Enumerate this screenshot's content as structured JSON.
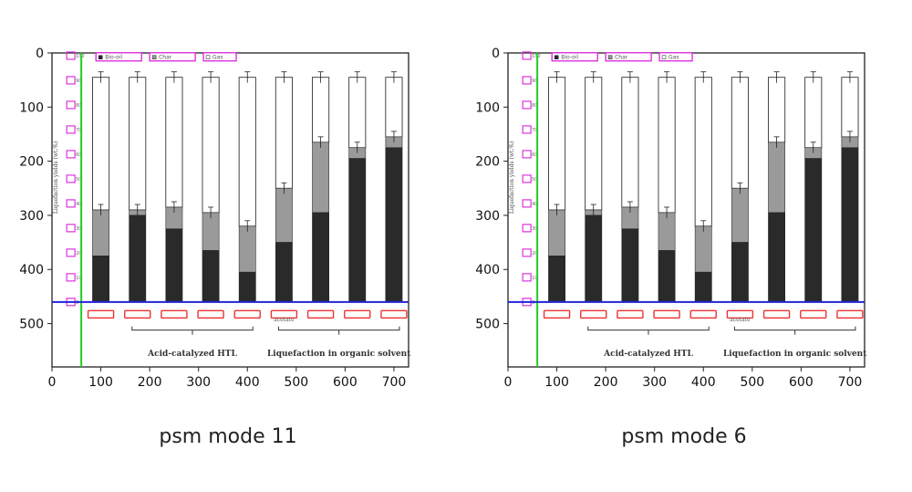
{
  "colors": {
    "green_line": "#22cc22",
    "blue_line": "#2222dd",
    "magenta_box": "#dd33dd",
    "red_box": "#ee3333",
    "dark_bar": "#2a2a2a",
    "gray_bar": "#9a9a9a"
  },
  "panels": [
    {
      "caption": "psm mode 11",
      "chart_data": {
        "type": "bar",
        "title": "",
        "x_ticks": [
          "0",
          "100",
          "200",
          "300",
          "400",
          "500",
          "600",
          "700"
        ],
        "y_ticks": [
          "0",
          "100",
          "200",
          "300",
          "400",
          "500"
        ],
        "xlim": [
          0,
          730
        ],
        "ylim": [
          580,
          0
        ],
        "inner_y_label": "Liquefaction yields (wt.%)",
        "inner_y_ticks": [
          "100",
          "90",
          "80",
          "70",
          "60",
          "50",
          "40",
          "30",
          "20",
          "10",
          "0"
        ],
        "legend": [
          "Bio-oil",
          "Char",
          "Gas"
        ],
        "group_labels": [
          "Acid-catalyzed HTL",
          "Liquefaction in organic solvent"
        ],
        "under_label": "acetate",
        "bars": [
          {
            "x": 100,
            "top": 45,
            "mid": 290,
            "dark": 375
          },
          {
            "x": 175,
            "top": 45,
            "mid": 290,
            "dark": 300
          },
          {
            "x": 250,
            "top": 45,
            "mid": 285,
            "dark": 325
          },
          {
            "x": 325,
            "top": 45,
            "mid": 295,
            "dark": 365
          },
          {
            "x": 400,
            "top": 45,
            "mid": 320,
            "dark": 405
          },
          {
            "x": 475,
            "top": 45,
            "mid": 250,
            "dark": 350
          },
          {
            "x": 550,
            "top": 45,
            "mid": 165,
            "dark": 295
          },
          {
            "x": 625,
            "top": 45,
            "mid": 175,
            "dark": 195
          },
          {
            "x": 700,
            "top": 45,
            "mid": 155,
            "dark": 175
          }
        ]
      }
    },
    {
      "caption": "psm mode 6",
      "chart_data": {
        "type": "bar",
        "title": "",
        "x_ticks": [
          "0",
          "100",
          "200",
          "300",
          "400",
          "500",
          "600",
          "700"
        ],
        "y_ticks": [
          "0",
          "100",
          "200",
          "300",
          "400",
          "500"
        ],
        "xlim": [
          0,
          730
        ],
        "ylim": [
          580,
          0
        ],
        "inner_y_label": "Liquefaction yields (wt.%)",
        "inner_y_ticks": [
          "100",
          "90",
          "80",
          "70",
          "60",
          "50",
          "40",
          "30",
          "20",
          "10",
          "0"
        ],
        "legend": [
          "Bio-oil",
          "Char",
          "Gas"
        ],
        "group_labels": [
          "Acid-catalyzed HTL",
          "Liquefaction in organic solvent"
        ],
        "under_label": "acetate",
        "bars": [
          {
            "x": 100,
            "top": 45,
            "mid": 290,
            "dark": 375
          },
          {
            "x": 175,
            "top": 45,
            "mid": 290,
            "dark": 300
          },
          {
            "x": 250,
            "top": 45,
            "mid": 285,
            "dark": 325
          },
          {
            "x": 325,
            "top": 45,
            "mid": 295,
            "dark": 365
          },
          {
            "x": 400,
            "top": 45,
            "mid": 320,
            "dark": 405
          },
          {
            "x": 475,
            "top": 45,
            "mid": 250,
            "dark": 350
          },
          {
            "x": 550,
            "top": 45,
            "mid": 165,
            "dark": 295
          },
          {
            "x": 625,
            "top": 45,
            "mid": 175,
            "dark": 195
          },
          {
            "x": 700,
            "top": 45,
            "mid": 155,
            "dark": 175
          }
        ]
      }
    }
  ]
}
